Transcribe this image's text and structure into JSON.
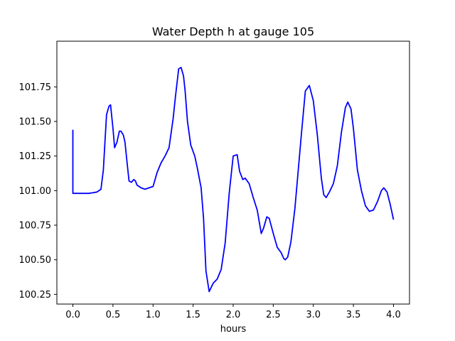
{
  "chart_data": {
    "type": "line",
    "title": "Water Depth h at gauge 105",
    "xlabel": "hours",
    "ylabel": "",
    "xlim": [
      -0.2,
      4.2
    ],
    "ylim": [
      100.18,
      102.08
    ],
    "xticks": [
      0.0,
      0.5,
      1.0,
      1.5,
      2.0,
      2.5,
      3.0,
      3.5,
      4.0
    ],
    "xtick_labels": [
      "0.0",
      "0.5",
      "1.0",
      "1.5",
      "2.0",
      "2.5",
      "3.0",
      "3.5",
      "4.0"
    ],
    "yticks": [
      100.25,
      100.5,
      100.75,
      101.0,
      101.25,
      101.5,
      101.75
    ],
    "ytick_labels": [
      "100.25",
      "100.50",
      "100.75",
      "101.00",
      "101.25",
      "101.50",
      "101.75"
    ],
    "grid": false,
    "series": [
      {
        "color": "#0000ff",
        "x": [
          0.0,
          0.0,
          0.1,
          0.2,
          0.3,
          0.35,
          0.38,
          0.4,
          0.42,
          0.45,
          0.47,
          0.5,
          0.52,
          0.55,
          0.58,
          0.6,
          0.63,
          0.65,
          0.68,
          0.7,
          0.73,
          0.76,
          0.78,
          0.8,
          0.85,
          0.9,
          0.95,
          1.0,
          1.05,
          1.1,
          1.15,
          1.2,
          1.25,
          1.28,
          1.32,
          1.35,
          1.38,
          1.4,
          1.43,
          1.47,
          1.52,
          1.55,
          1.6,
          1.63,
          1.66,
          1.7,
          1.75,
          1.8,
          1.85,
          1.9,
          1.95,
          2.0,
          2.05,
          2.08,
          2.12,
          2.15,
          2.2,
          2.25,
          2.3,
          2.35,
          2.38,
          2.42,
          2.45,
          2.5,
          2.55,
          2.6,
          2.63,
          2.65,
          2.68,
          2.72,
          2.77,
          2.8,
          2.85,
          2.9,
          2.95,
          3.0,
          3.05,
          3.1,
          3.13,
          3.16,
          3.2,
          3.25,
          3.3,
          3.35,
          3.4,
          3.43,
          3.47,
          3.5,
          3.55,
          3.6,
          3.65,
          3.7,
          3.75,
          3.8,
          3.85,
          3.88,
          3.92,
          3.96,
          4.0
        ],
        "y": [
          101.44,
          100.98,
          100.98,
          100.98,
          100.99,
          101.01,
          101.15,
          101.35,
          101.55,
          101.61,
          101.62,
          101.45,
          101.31,
          101.35,
          101.43,
          101.43,
          101.4,
          101.35,
          101.18,
          101.07,
          101.06,
          101.08,
          101.07,
          101.04,
          101.02,
          101.01,
          101.02,
          101.03,
          101.13,
          101.2,
          101.25,
          101.31,
          101.52,
          101.68,
          101.88,
          101.89,
          101.83,
          101.72,
          101.5,
          101.33,
          101.25,
          101.17,
          101.02,
          100.8,
          100.42,
          100.27,
          100.33,
          100.36,
          100.43,
          100.62,
          100.98,
          101.25,
          101.26,
          101.14,
          101.08,
          101.09,
          101.05,
          100.95,
          100.86,
          100.69,
          100.73,
          100.81,
          100.8,
          100.69,
          100.59,
          100.55,
          100.51,
          100.5,
          100.52,
          100.63,
          100.87,
          101.07,
          101.4,
          101.72,
          101.76,
          101.65,
          101.4,
          101.09,
          100.97,
          100.95,
          100.99,
          101.05,
          101.18,
          101.42,
          101.6,
          101.64,
          101.59,
          101.45,
          101.15,
          101.0,
          100.89,
          100.85,
          100.86,
          100.92,
          101.0,
          101.02,
          100.99,
          100.9,
          100.79
        ]
      }
    ]
  }
}
